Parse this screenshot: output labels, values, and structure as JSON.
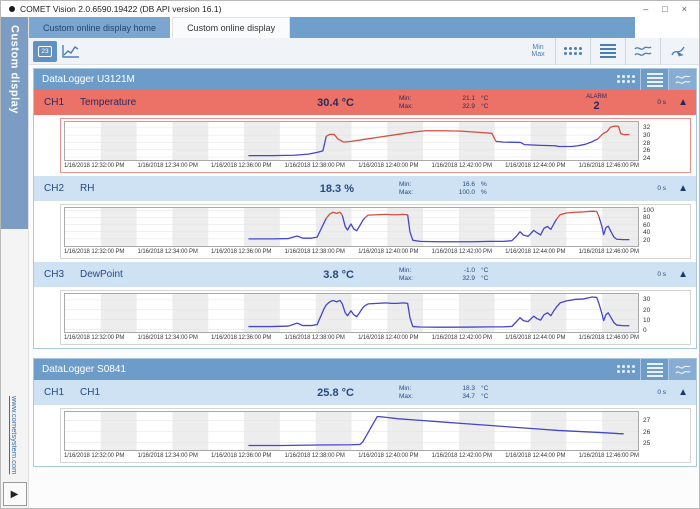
{
  "window": {
    "title": "COMET Vision 2.0.6590.19422 (DB API version 16.1)",
    "controls": {
      "minimize": "–",
      "maximize": "□",
      "close": "×"
    }
  },
  "sidebar": {
    "title": "Custom display",
    "link": "www.cometsystem.com",
    "expand": "▶"
  },
  "tabs": [
    {
      "label": "Custom online display home",
      "active": false
    },
    {
      "label": "Custom online display",
      "active": true
    }
  ],
  "toolbar": {
    "numeric_view_icon_text": "23",
    "minmax_line1": "Min",
    "minmax_line2": "Max",
    "right_icons": [
      "min-max",
      "tile-view",
      "list-view",
      "charts-view",
      "graph-cursor"
    ]
  },
  "labels": {
    "min": "Min:",
    "max": "Max:"
  },
  "loggers": [
    {
      "title": "DataLogger U3121M",
      "channels": [
        {
          "id": "CH1",
          "name": "Temperature",
          "value": "30.4",
          "unit": "°C",
          "min": "21.1",
          "max": "32.9",
          "mm_unit": "°C",
          "alarm_label": "ALARM",
          "alarm_count": "2",
          "interval": "0 s",
          "collapse": "▲"
        },
        {
          "id": "CH2",
          "name": "RH",
          "value": "18.3",
          "unit": "%",
          "min": "16.6",
          "max": "100.0",
          "mm_unit": "%",
          "interval": "0 s",
          "collapse": "▲"
        },
        {
          "id": "CH3",
          "name": "DewPoint",
          "value": "3.8",
          "unit": "°C",
          "min": "-1.0",
          "max": "32.9",
          "mm_unit": "°C",
          "interval": "0 s",
          "collapse": "▲"
        }
      ]
    },
    {
      "title": "DataLogger S0841",
      "channels": [
        {
          "id": "CH1",
          "name": "CH1",
          "value": "25.8",
          "unit": "°C",
          "min": "18.3",
          "max": "34.7",
          "mm_unit": "°C",
          "interval": "0 s",
          "collapse": "▲"
        }
      ]
    }
  ],
  "x_labels": [
    "1/16/2018 12:32:00 PM",
    "1/16/2018 12:34:00 PM",
    "1/16/2018 12:36:00 PM",
    "1/16/2018 12:38:00 PM",
    "1/16/2018 12:40:00 PM",
    "1/16/2018 12:42:00 PM",
    "1/16/2018 12:44:00 PM",
    "1/16/2018 12:46:00 PM"
  ],
  "colors": {
    "line_blue": "#4646c8",
    "line_red": "#d24f44",
    "band_gray": "#ededed",
    "alarm_row": "#ec7166",
    "row_blue": "#cfe2f4",
    "header_blue": "#6d9cc8"
  },
  "chart_data": [
    {
      "type": "line",
      "title": "CH1 Temperature (°C)",
      "ylabel": "°C",
      "ylim": [
        23.2,
        33.6
      ],
      "yticks": [
        24,
        26,
        28,
        30,
        32
      ],
      "x_range": "1/16/2018 12:31 PM - 12:47 PM",
      "segments": [
        {
          "color": "blue",
          "points": [
            [
              32,
              24.4
            ],
            [
              36,
              24.4
            ],
            [
              40,
              24.5
            ],
            [
              42.5,
              24.8
            ],
            [
              44,
              25.3
            ],
            [
              45,
              25.7
            ],
            [
              45.6,
              29.7
            ]
          ]
        },
        {
          "color": "red",
          "points": [
            [
              45.6,
              29.7
            ],
            [
              46.2,
              30.2
            ],
            [
              47,
              30.2
            ],
            [
              47.6,
              29.0
            ],
            [
              48.6,
              28.1
            ],
            [
              50,
              28.3
            ],
            [
              52,
              28.8
            ],
            [
              55,
              29.5
            ],
            [
              58,
              30.2
            ],
            [
              61,
              30.9
            ],
            [
              63,
              31.2
            ],
            [
              66,
              31.2
            ],
            [
              69,
              31.1
            ],
            [
              72,
              30.8
            ],
            [
              74.5,
              30.5
            ],
            [
              75.2,
              28.3
            ]
          ]
        },
        {
          "color": "blue",
          "points": [
            [
              75.2,
              28.3
            ],
            [
              76.5,
              28.1
            ],
            [
              79.5,
              28.0
            ],
            [
              80.2,
              27.4
            ],
            [
              83,
              27.2
            ],
            [
              85.5,
              27.1
            ],
            [
              86.2,
              26.9
            ],
            [
              88.5,
              26.9
            ],
            [
              89.5,
              27.1
            ],
            [
              90.8,
              27.5
            ],
            [
              92,
              28.2
            ],
            [
              93,
              29.0
            ]
          ]
        },
        {
          "color": "red",
          "points": [
            [
              93,
              29.0
            ],
            [
              93.8,
              30.3
            ],
            [
              94.6,
              31.0
            ],
            [
              95.2,
              32.2
            ],
            [
              96,
              32.5
            ],
            [
              96.6,
              32.4
            ],
            [
              97,
              30.4
            ],
            [
              97.6,
              30.1
            ],
            [
              98.5,
              30.2
            ]
          ]
        }
      ]
    },
    {
      "type": "line",
      "title": "CH2 RH (%)",
      "ylabel": "%",
      "ylim": [
        0,
        107
      ],
      "yticks": [
        20,
        40,
        60,
        80,
        100
      ],
      "x_range": "1/16/2018 12:31 PM - 12:47 PM",
      "segments": [
        {
          "color": "blue",
          "points": [
            [
              32,
              20
            ],
            [
              36,
              20
            ],
            [
              39,
              21
            ],
            [
              40.5,
              28
            ],
            [
              41.5,
              22
            ],
            [
              43,
              22
            ],
            [
              44,
              25
            ],
            [
              44.6,
              45
            ],
            [
              45.2,
              65
            ],
            [
              45.6,
              78
            ]
          ]
        },
        {
          "color": "red",
          "points": [
            [
              45.6,
              78
            ],
            [
              46.2,
              90
            ],
            [
              46.8,
              95
            ],
            [
              47.4,
              92
            ],
            [
              48,
              95
            ],
            [
              48.4,
              86
            ]
          ]
        },
        {
          "color": "blue",
          "points": [
            [
              48.4,
              86
            ],
            [
              48.9,
              55
            ],
            [
              49.3,
              45
            ],
            [
              49.9,
              62
            ],
            [
              50.4,
              48
            ],
            [
              50.9,
              43
            ],
            [
              51.4,
              56
            ],
            [
              51.9,
              70
            ],
            [
              52.3,
              79
            ]
          ]
        },
        {
          "color": "red",
          "points": [
            [
              52.3,
              79
            ],
            [
              52.9,
              87
            ],
            [
              54.5,
              88
            ],
            [
              56,
              89
            ],
            [
              57,
              88
            ],
            [
              58,
              88
            ],
            [
              59,
              89
            ],
            [
              59.8,
              88
            ]
          ]
        },
        {
          "color": "blue",
          "points": [
            [
              59.8,
              88
            ],
            [
              60.2,
              40
            ],
            [
              60.7,
              16
            ],
            [
              62,
              13
            ],
            [
              65,
              12
            ],
            [
              68,
              12
            ],
            [
              71,
              12
            ],
            [
              74,
              13
            ],
            [
              76.5,
              13
            ],
            [
              78,
              15
            ],
            [
              78.8,
              28
            ],
            [
              79.4,
              40
            ],
            [
              80,
              31
            ],
            [
              80.8,
              27
            ],
            [
              81.8,
              44
            ],
            [
              82.4,
              37
            ],
            [
              83,
              31
            ],
            [
              83.6,
              50
            ],
            [
              84.2,
              55
            ],
            [
              84.8,
              47
            ],
            [
              85.3,
              62
            ],
            [
              85.8,
              76
            ]
          ]
        },
        {
          "color": "red",
          "points": [
            [
              85.8,
              76
            ],
            [
              86.4,
              88
            ],
            [
              87.5,
              93
            ],
            [
              89,
              95
            ],
            [
              90.5,
              96
            ],
            [
              92,
              98
            ],
            [
              92.8,
              97
            ],
            [
              93.2,
              82
            ]
          ]
        },
        {
          "color": "blue",
          "points": [
            [
              93.2,
              82
            ],
            [
              93.7,
              55
            ],
            [
              94,
              32
            ],
            [
              94.4,
              52
            ],
            [
              94.8,
              56
            ],
            [
              95.3,
              40
            ],
            [
              95.8,
              25
            ],
            [
              96.3,
              19
            ],
            [
              97.5,
              18
            ],
            [
              98.5,
              18
            ]
          ]
        }
      ]
    },
    {
      "type": "line",
      "title": "CH3 DewPoint (°C)",
      "ylabel": "°C",
      "ylim": [
        -2.5,
        36
      ],
      "yticks": [
        0,
        10,
        20,
        30
      ],
      "x_range": "1/16/2018 12:31 PM - 12:47 PM",
      "segments": [
        {
          "color": "blue",
          "points": [
            [
              32,
              3
            ],
            [
              36,
              3
            ],
            [
              39,
              3.5
            ],
            [
              40.5,
              6.5
            ],
            [
              41.5,
              4
            ],
            [
              43,
              4
            ],
            [
              44,
              5
            ],
            [
              44.6,
              13
            ],
            [
              45.2,
              21
            ],
            [
              45.6,
              25
            ],
            [
              46.2,
              28
            ],
            [
              46.8,
              29.5
            ],
            [
              47.4,
              28
            ],
            [
              48,
              29.5
            ],
            [
              48.4,
              26
            ],
            [
              48.9,
              17
            ],
            [
              49.3,
              14
            ],
            [
              49.9,
              19
            ],
            [
              50.4,
              15
            ],
            [
              50.9,
              13
            ],
            [
              51.4,
              17
            ],
            [
              51.9,
              21.5
            ],
            [
              52.3,
              24
            ],
            [
              52.9,
              26
            ],
            [
              54.5,
              26.5
            ],
            [
              56,
              27
            ],
            [
              57,
              26.5
            ],
            [
              58,
              26.5
            ],
            [
              59,
              27
            ],
            [
              59.8,
              26.5
            ],
            [
              60.2,
              12
            ],
            [
              60.7,
              3
            ],
            [
              62,
              2.6
            ],
            [
              65,
              2.4
            ],
            [
              68,
              2.4
            ],
            [
              71,
              2.5
            ],
            [
              74,
              2.7
            ],
            [
              76.5,
              2.7
            ],
            [
              78,
              3.2
            ],
            [
              78.8,
              8
            ],
            [
              79.4,
              12
            ],
            [
              80,
              9
            ],
            [
              80.8,
              8
            ],
            [
              81.8,
              13.5
            ],
            [
              82.4,
              11
            ],
            [
              83,
              9.5
            ],
            [
              83.6,
              15
            ],
            [
              84.2,
              17
            ],
            [
              84.8,
              14
            ],
            [
              85.3,
              19
            ],
            [
              85.8,
              23
            ],
            [
              86.4,
              27
            ],
            [
              87.5,
              29
            ],
            [
              89,
              30.5
            ],
            [
              90.5,
              31
            ],
            [
              92,
              33
            ],
            [
              92.8,
              32.5
            ],
            [
              93.2,
              26
            ],
            [
              93.7,
              16
            ],
            [
              94,
              9
            ],
            [
              94.4,
              15
            ],
            [
              94.8,
              17
            ],
            [
              95.3,
              12
            ],
            [
              95.8,
              7
            ],
            [
              96.3,
              4.5
            ],
            [
              97.5,
              3.8
            ],
            [
              98.5,
              3.8
            ]
          ]
        }
      ]
    },
    {
      "type": "line",
      "title": "S0841 CH1 (°C)",
      "ylabel": "°C",
      "ylim": [
        24.35,
        27.75
      ],
      "yticks": [
        25,
        26,
        27
      ],
      "x_range": "1/16/2018 12:31 PM - 12:47 PM",
      "segments": [
        {
          "color": "blue",
          "points": [
            [
              32,
              24.75
            ],
            [
              38,
              24.75
            ],
            [
              44,
              24.8
            ],
            [
              50,
              24.82
            ],
            [
              51.5,
              24.85
            ],
            [
              52,
              25.1
            ],
            [
              54.5,
              27.35
            ],
            [
              55.5,
              27.3
            ],
            [
              58,
              27.15
            ],
            [
              62,
              27.0
            ],
            [
              66,
              26.85
            ],
            [
              70,
              26.7
            ],
            [
              74,
              26.55
            ],
            [
              78,
              26.4
            ],
            [
              82,
              26.25
            ],
            [
              86,
              26.1
            ],
            [
              90,
              26.0
            ],
            [
              94,
              25.9
            ],
            [
              96.5,
              25.82
            ],
            [
              97.5,
              25.8
            ]
          ]
        }
      ]
    }
  ]
}
